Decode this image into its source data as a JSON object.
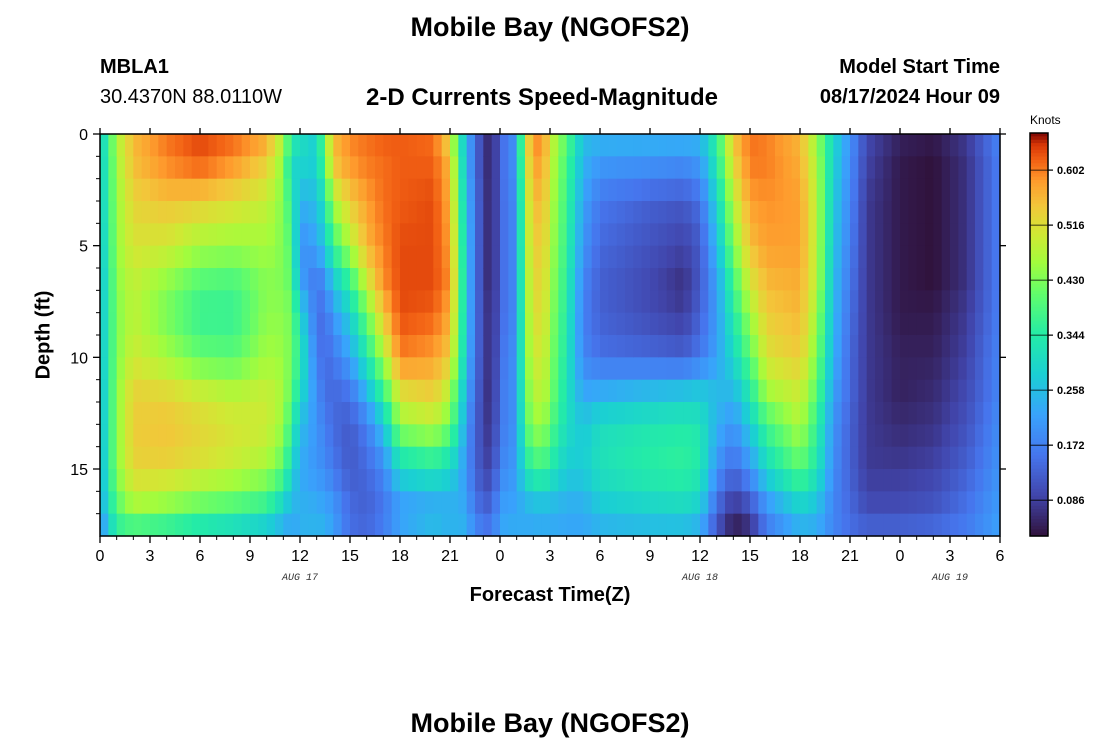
{
  "header": {
    "title": "Mobile Bay (NGOFS2)",
    "station": "MBLA1",
    "coords": "30.4370N  88.0110W",
    "subtitle": "2-D Currents Speed-Magnitude",
    "model_start_label": "Model Start Time",
    "model_start_value": "08/17/2024 Hour 09"
  },
  "footer": {
    "title": "Mobile Bay (NGOFS2)"
  },
  "chart_data": {
    "type": "heatmap",
    "title": "2-D Currents Speed-Magnitude",
    "xlabel": "Forecast Time(Z)",
    "ylabel": "Depth (ft)",
    "x_ticks": [
      "0",
      "3",
      "6",
      "9",
      "12",
      "15",
      "18",
      "21",
      "0",
      "3",
      "6",
      "9",
      "12",
      "15",
      "18",
      "21",
      "0",
      "3",
      "6"
    ],
    "day_labels": [
      "AUG 17",
      "AUG 18",
      "AUG 19"
    ],
    "day_label_ticks": [
      12,
      36,
      51
    ],
    "y_ticks": [
      "0",
      "5",
      "10",
      "15"
    ],
    "y_tick_values": [
      0,
      5,
      10,
      15
    ],
    "ylim": [
      0,
      18
    ],
    "y_direction": "down",
    "x_range_hours": [
      0,
      54
    ],
    "colorbar": {
      "units": "Knots",
      "ticks": [
        "0.086",
        "0.172",
        "0.258",
        "0.344",
        "0.430",
        "0.516",
        "0.602"
      ],
      "tick_values": [
        0.086,
        0.172,
        0.258,
        0.344,
        0.43,
        0.516,
        0.602
      ],
      "range": [
        0.03,
        0.66
      ]
    },
    "profiles_knots": [
      {
        "hour": 0,
        "values": [
          0.28,
          0.28,
          0.27,
          0.27,
          0.26,
          0.26,
          0.26,
          0.25,
          0.25,
          0.24,
          0.23,
          0.18
        ]
      },
      {
        "hour": 0.5,
        "values": [
          0.37,
          0.36,
          0.36,
          0.35,
          0.34,
          0.34,
          0.34,
          0.34,
          0.34,
          0.34,
          0.31,
          0.26
        ]
      },
      {
        "hour": 1,
        "values": [
          0.47,
          0.46,
          0.45,
          0.45,
          0.44,
          0.43,
          0.43,
          0.44,
          0.44,
          0.44,
          0.4,
          0.34
        ]
      },
      {
        "hour": 2,
        "values": [
          0.56,
          0.55,
          0.53,
          0.51,
          0.49,
          0.48,
          0.5,
          0.53,
          0.54,
          0.53,
          0.47,
          0.35
        ]
      },
      {
        "hour": 4,
        "values": [
          0.61,
          0.59,
          0.55,
          0.5,
          0.45,
          0.42,
          0.46,
          0.52,
          0.55,
          0.53,
          0.45,
          0.33
        ]
      },
      {
        "hour": 6,
        "values": [
          0.64,
          0.61,
          0.54,
          0.46,
          0.4,
          0.36,
          0.41,
          0.49,
          0.53,
          0.51,
          0.42,
          0.3
        ]
      },
      {
        "hour": 8,
        "values": [
          0.62,
          0.58,
          0.52,
          0.45,
          0.39,
          0.36,
          0.4,
          0.47,
          0.51,
          0.49,
          0.4,
          0.28
        ]
      },
      {
        "hour": 10,
        "values": [
          0.58,
          0.53,
          0.49,
          0.46,
          0.44,
          0.44,
          0.46,
          0.49,
          0.5,
          0.46,
          0.37,
          0.25
        ]
      },
      {
        "hour": 11,
        "values": [
          0.47,
          0.44,
          0.43,
          0.43,
          0.43,
          0.44,
          0.45,
          0.46,
          0.45,
          0.4,
          0.3,
          0.22
        ]
      },
      {
        "hour": 11.5,
        "values": [
          0.35,
          0.3,
          0.35,
          0.39,
          0.4,
          0.42,
          0.42,
          0.4,
          0.36,
          0.3,
          0.25,
          0.21
        ]
      },
      {
        "hour": 12,
        "values": [
          0.32,
          0.29,
          0.24,
          0.19,
          0.22,
          0.3,
          0.34,
          0.31,
          0.26,
          0.23,
          0.24,
          0.24
        ]
      },
      {
        "hour": 13,
        "values": [
          0.28,
          0.28,
          0.26,
          0.22,
          0.16,
          0.15,
          0.17,
          0.19,
          0.2,
          0.2,
          0.23,
          0.25
        ]
      },
      {
        "hour": 13.5,
        "values": [
          0.44,
          0.4,
          0.33,
          0.28,
          0.2,
          0.15,
          0.14,
          0.15,
          0.17,
          0.19,
          0.22,
          0.25
        ]
      },
      {
        "hour": 14,
        "values": [
          0.56,
          0.54,
          0.47,
          0.37,
          0.28,
          0.21,
          0.16,
          0.14,
          0.14,
          0.16,
          0.2,
          0.22
        ]
      },
      {
        "hour": 15,
        "values": [
          0.6,
          0.58,
          0.54,
          0.47,
          0.37,
          0.29,
          0.22,
          0.16,
          0.12,
          0.12,
          0.14,
          0.15
        ]
      },
      {
        "hour": 16,
        "values": [
          0.61,
          0.6,
          0.58,
          0.56,
          0.5,
          0.42,
          0.33,
          0.25,
          0.17,
          0.14,
          0.13,
          0.14
        ]
      },
      {
        "hour": 17,
        "values": [
          0.62,
          0.61,
          0.61,
          0.6,
          0.59,
          0.55,
          0.46,
          0.37,
          0.27,
          0.18,
          0.16,
          0.17
        ]
      },
      {
        "hour": 18,
        "values": [
          0.62,
          0.62,
          0.62,
          0.63,
          0.63,
          0.63,
          0.6,
          0.52,
          0.45,
          0.3,
          0.22,
          0.22
        ]
      },
      {
        "hour": 20,
        "values": [
          0.61,
          0.62,
          0.63,
          0.63,
          0.63,
          0.62,
          0.58,
          0.54,
          0.48,
          0.33,
          0.24,
          0.26
        ]
      },
      {
        "hour": 21,
        "values": [
          0.52,
          0.56,
          0.57,
          0.58,
          0.59,
          0.57,
          0.54,
          0.48,
          0.42,
          0.3,
          0.24,
          0.24
        ]
      },
      {
        "hour": 21.5,
        "values": [
          0.35,
          0.38,
          0.4,
          0.42,
          0.43,
          0.42,
          0.4,
          0.35,
          0.32,
          0.25,
          0.24,
          0.25
        ]
      },
      {
        "hour": 22,
        "values": [
          0.25,
          0.25,
          0.26,
          0.27,
          0.27,
          0.27,
          0.26,
          0.24,
          0.21,
          0.2,
          0.22,
          0.24
        ]
      },
      {
        "hour": 22.5,
        "values": [
          0.14,
          0.14,
          0.15,
          0.15,
          0.15,
          0.15,
          0.15,
          0.14,
          0.13,
          0.13,
          0.15,
          0.19
        ]
      },
      {
        "hour": 23.5,
        "values": [
          0.04,
          0.04,
          0.04,
          0.04,
          0.04,
          0.05,
          0.05,
          0.05,
          0.06,
          0.08,
          0.12,
          0.16
        ]
      },
      {
        "hour": 24,
        "values": [
          0.14,
          0.14,
          0.14,
          0.14,
          0.14,
          0.14,
          0.15,
          0.16,
          0.16,
          0.18,
          0.21,
          0.23
        ]
      },
      {
        "hour": 25,
        "values": [
          0.2,
          0.2,
          0.19,
          0.19,
          0.19,
          0.19,
          0.2,
          0.2,
          0.2,
          0.21,
          0.22,
          0.24
        ]
      },
      {
        "hour": 25.5,
        "values": [
          0.52,
          0.5,
          0.48,
          0.47,
          0.46,
          0.45,
          0.44,
          0.42,
          0.4,
          0.33,
          0.25,
          0.22
        ]
      },
      {
        "hour": 26.5,
        "values": [
          0.62,
          0.6,
          0.58,
          0.56,
          0.55,
          0.54,
          0.52,
          0.5,
          0.47,
          0.38,
          0.27,
          0.22
        ]
      },
      {
        "hour": 27,
        "values": [
          0.5,
          0.49,
          0.48,
          0.47,
          0.46,
          0.45,
          0.44,
          0.43,
          0.4,
          0.34,
          0.26,
          0.22
        ]
      },
      {
        "hour": 28,
        "values": [
          0.4,
          0.38,
          0.37,
          0.36,
          0.35,
          0.34,
          0.33,
          0.32,
          0.31,
          0.28,
          0.24,
          0.22
        ]
      },
      {
        "hour": 29,
        "values": [
          0.26,
          0.24,
          0.22,
          0.2,
          0.18,
          0.17,
          0.18,
          0.22,
          0.27,
          0.28,
          0.24,
          0.22
        ]
      },
      {
        "hour": 30,
        "values": [
          0.25,
          0.2,
          0.16,
          0.14,
          0.13,
          0.13,
          0.15,
          0.23,
          0.31,
          0.32,
          0.28,
          0.23
        ]
      },
      {
        "hour": 33,
        "values": [
          0.25,
          0.19,
          0.13,
          0.11,
          0.1,
          0.1,
          0.14,
          0.25,
          0.33,
          0.35,
          0.3,
          0.24
        ]
      },
      {
        "hour": 35,
        "values": [
          0.25,
          0.18,
          0.12,
          0.09,
          0.07,
          0.08,
          0.13,
          0.26,
          0.34,
          0.36,
          0.31,
          0.24
        ]
      },
      {
        "hour": 36,
        "values": [
          0.25,
          0.2,
          0.15,
          0.12,
          0.12,
          0.13,
          0.16,
          0.27,
          0.33,
          0.34,
          0.29,
          0.22
        ]
      },
      {
        "hour": 37,
        "values": [
          0.36,
          0.33,
          0.29,
          0.25,
          0.22,
          0.21,
          0.22,
          0.25,
          0.24,
          0.2,
          0.15,
          0.1
        ]
      },
      {
        "hour": 38,
        "values": [
          0.55,
          0.52,
          0.48,
          0.43,
          0.38,
          0.34,
          0.3,
          0.25,
          0.2,
          0.14,
          0.08,
          0.03
        ]
      },
      {
        "hour": 39,
        "values": [
          0.61,
          0.6,
          0.58,
          0.55,
          0.51,
          0.46,
          0.4,
          0.34,
          0.28,
          0.2,
          0.12,
          0.05
        ]
      },
      {
        "hour": 40,
        "values": [
          0.6,
          0.6,
          0.59,
          0.58,
          0.56,
          0.54,
          0.51,
          0.46,
          0.38,
          0.3,
          0.21,
          0.15
        ]
      },
      {
        "hour": 42,
        "values": [
          0.56,
          0.57,
          0.58,
          0.58,
          0.57,
          0.56,
          0.54,
          0.5,
          0.47,
          0.4,
          0.3,
          0.22
        ]
      },
      {
        "hour": 43,
        "values": [
          0.45,
          0.47,
          0.48,
          0.48,
          0.48,
          0.46,
          0.43,
          0.4,
          0.36,
          0.33,
          0.27,
          0.22
        ]
      },
      {
        "hour": 44,
        "values": [
          0.3,
          0.29,
          0.28,
          0.27,
          0.26,
          0.25,
          0.24,
          0.22,
          0.2,
          0.19,
          0.18,
          0.18
        ]
      },
      {
        "hour": 45,
        "values": [
          0.2,
          0.19,
          0.18,
          0.17,
          0.16,
          0.15,
          0.14,
          0.14,
          0.13,
          0.13,
          0.14,
          0.15
        ]
      },
      {
        "hour": 46,
        "values": [
          0.1,
          0.09,
          0.08,
          0.08,
          0.08,
          0.08,
          0.08,
          0.08,
          0.08,
          0.08,
          0.1,
          0.14
        ]
      },
      {
        "hour": 48,
        "values": [
          0.05,
          0.04,
          0.04,
          0.04,
          0.04,
          0.04,
          0.05,
          0.05,
          0.06,
          0.08,
          0.1,
          0.14
        ]
      },
      {
        "hour": 50,
        "values": [
          0.04,
          0.03,
          0.03,
          0.03,
          0.03,
          0.04,
          0.05,
          0.06,
          0.07,
          0.09,
          0.11,
          0.15
        ]
      },
      {
        "hour": 52,
        "values": [
          0.08,
          0.07,
          0.07,
          0.07,
          0.07,
          0.08,
          0.09,
          0.1,
          0.11,
          0.13,
          0.15,
          0.17
        ]
      },
      {
        "hour": 54,
        "values": [
          0.18,
          0.17,
          0.17,
          0.17,
          0.17,
          0.17,
          0.18,
          0.18,
          0.19,
          0.2,
          0.21,
          0.22
        ]
      }
    ],
    "profile_depths_ft": [
      0,
      1.5,
      3,
      5,
      6.5,
      8,
      10,
      11.5,
      13,
      15,
      16.5,
      18
    ]
  }
}
